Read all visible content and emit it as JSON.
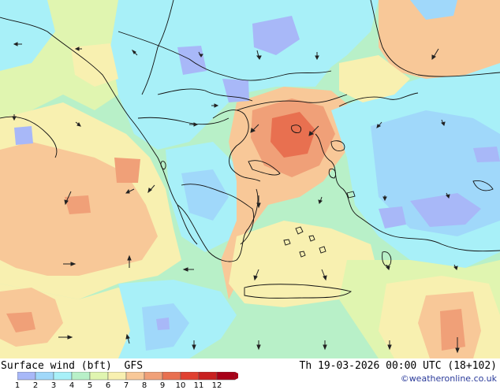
{
  "map": {
    "title": "Surface wind (bft)",
    "model": "GFS",
    "valid_time": "Th 19-03-2026 00:00 UTC (18+102)",
    "credit": "©weatheronline.co.uk",
    "region": "Balkans / Aegean Sea / Western Turkey",
    "legend": {
      "unit": "bft",
      "labels": [
        "1",
        "2",
        "3",
        "4",
        "5",
        "6",
        "7",
        "8",
        "9",
        "10",
        "11",
        "12"
      ],
      "colors": [
        "#a8b8f8",
        "#a0d8fa",
        "#a8f0f8",
        "#b8f0c8",
        "#e0f5b0",
        "#f8f0b0",
        "#f8c898",
        "#f0a078",
        "#e87050",
        "#e04030",
        "#c82020",
        "#a80018"
      ]
    },
    "fill_colors": {
      "bft3": "#a8f0f8",
      "bft4": "#b8f0c8",
      "bft5": "#e0f5b0",
      "bft6": "#f8f0b0",
      "bft7": "#f8c898",
      "bft8": "#f0a078",
      "bft9": "#e87050",
      "bft2": "#a0d8fa",
      "bft1": "#a8b8f8"
    }
  }
}
